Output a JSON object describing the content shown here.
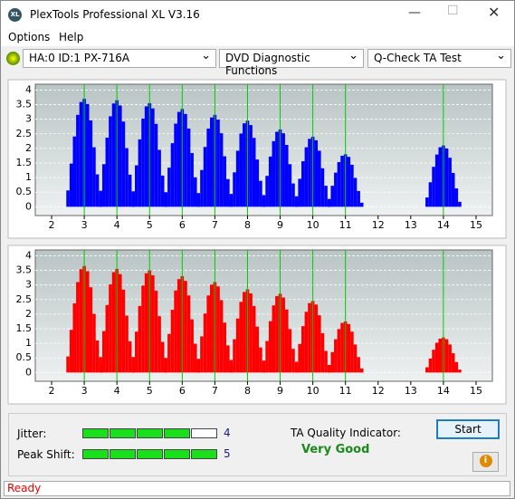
{
  "window": {
    "title": "PlexTools Professional XL V3.16",
    "icon": "XL"
  },
  "menu": [
    "Options",
    "Help"
  ],
  "toolbar": {
    "drive": "HA:0 ID:1  PX-716A",
    "function": "DVD Diagnostic Functions",
    "test": "Q-Check TA Test"
  },
  "chart_data": [
    {
      "type": "bar",
      "color": "#0000ff",
      "marker_color": "#00cc00",
      "grid": true,
      "xlim": [
        1.5,
        15.5
      ],
      "ylim": [
        -0.3,
        4.2
      ],
      "xticks": [
        2,
        3,
        4,
        5,
        6,
        7,
        8,
        9,
        10,
        11,
        12,
        13,
        14,
        15
      ],
      "yticks": [
        0,
        0.5,
        1,
        1.5,
        2,
        2.5,
        3,
        3.5,
        4
      ],
      "markers": [
        3,
        4,
        5,
        6,
        7,
        8,
        9,
        10,
        11,
        14
      ],
      "x": [
        2.5,
        2.6,
        2.7,
        2.8,
        2.9,
        3,
        3.1,
        3.2,
        3.3,
        3.4,
        3.5,
        3.5,
        3.6,
        3.7,
        3.8,
        3.9,
        4,
        4.1,
        4.2,
        4.3,
        4.4,
        4.5,
        4.5,
        4.6,
        4.7,
        4.8,
        4.9,
        5,
        5.1,
        5.2,
        5.3,
        5.4,
        5.5,
        5.5,
        5.6,
        5.7,
        5.8,
        5.9,
        6,
        6.1,
        6.2,
        6.3,
        6.4,
        6.5,
        6.5,
        6.6,
        6.7,
        6.8,
        6.9,
        7,
        7.1,
        7.2,
        7.3,
        7.4,
        7.5,
        7.5,
        7.6,
        7.7,
        7.8,
        7.9,
        8,
        8.1,
        8.2,
        8.3,
        8.4,
        8.5,
        8.5,
        8.6,
        8.7,
        8.8,
        8.9,
        9,
        9.1,
        9.2,
        9.3,
        9.4,
        9.5,
        9.5,
        9.6,
        9.7,
        9.8,
        9.9,
        10,
        10.1,
        10.2,
        10.3,
        10.4,
        10.5,
        10.5,
        10.6,
        10.7,
        10.8,
        10.9,
        11,
        11.1,
        11.2,
        11.3,
        11.4,
        11.5,
        13.5,
        13.6,
        13.7,
        13.8,
        13.9,
        14,
        14.1,
        14.2,
        14.3,
        14.4,
        14.5
      ],
      "values": [
        0.56,
        1.48,
        2.41,
        3.15,
        3.59,
        3.7,
        3.52,
        2.96,
        2.04,
        1.11,
        0.3,
        0.55,
        1.46,
        2.37,
        3.1,
        3.54,
        3.65,
        3.47,
        2.92,
        2.01,
        1.1,
        0.29,
        0.53,
        1.42,
        2.31,
        3.02,
        3.44,
        3.55,
        3.37,
        2.84,
        1.95,
        1.07,
        0.28,
        0.5,
        1.34,
        2.18,
        2.85,
        3.25,
        3.35,
        3.18,
        2.68,
        1.84,
        1.01,
        0.27,
        0.47,
        1.26,
        2.05,
        2.68,
        3.06,
        3.15,
        2.99,
        2.52,
        1.73,
        0.95,
        0.25,
        0.44,
        1.18,
        1.92,
        2.51,
        2.86,
        2.95,
        2.8,
        2.36,
        1.62,
        0.89,
        0.24,
        0.4,
        1.06,
        1.72,
        2.25,
        2.57,
        2.65,
        2.52,
        2.12,
        1.46,
        0.8,
        0.21,
        0.36,
        0.96,
        1.56,
        2.04,
        2.33,
        2.4,
        2.28,
        1.92,
        1.32,
        0.72,
        0.19,
        0.27,
        0.72,
        1.17,
        1.53,
        1.75,
        1.8,
        1.71,
        1.44,
        0.99,
        0.54,
        0.14,
        0.32,
        0.84,
        1.37,
        1.79,
        2.04,
        2.1,
        2.0,
        1.68,
        1.16,
        0.63,
        0.17
      ]
    },
    {
      "type": "bar",
      "color": "#ff0000",
      "marker_color": "#00cc00",
      "grid": true,
      "xlim": [
        1.5,
        15.5
      ],
      "ylim": [
        -0.3,
        4.2
      ],
      "xticks": [
        2,
        3,
        4,
        5,
        6,
        7,
        8,
        9,
        10,
        11,
        12,
        13,
        14,
        15
      ],
      "yticks": [
        0,
        0.5,
        1,
        1.5,
        2,
        2.5,
        3,
        3.5,
        4
      ],
      "markers": [
        3,
        4,
        5,
        6,
        7,
        8,
        9,
        10,
        11,
        14
      ],
      "x": [
        2.5,
        2.6,
        2.7,
        2.8,
        2.9,
        3,
        3.1,
        3.2,
        3.3,
        3.4,
        3.5,
        3.5,
        3.6,
        3.7,
        3.8,
        3.9,
        4,
        4.1,
        4.2,
        4.3,
        4.4,
        4.5,
        4.5,
        4.6,
        4.7,
        4.8,
        4.9,
        5,
        5.1,
        5.2,
        5.3,
        5.4,
        5.5,
        5.5,
        5.6,
        5.7,
        5.8,
        5.9,
        6,
        6.1,
        6.2,
        6.3,
        6.4,
        6.5,
        6.5,
        6.6,
        6.7,
        6.8,
        6.9,
        7,
        7.1,
        7.2,
        7.3,
        7.4,
        7.5,
        7.5,
        7.6,
        7.7,
        7.8,
        7.9,
        8,
        8.1,
        8.2,
        8.3,
        8.4,
        8.5,
        8.5,
        8.6,
        8.7,
        8.8,
        8.9,
        9,
        9.1,
        9.2,
        9.3,
        9.4,
        9.5,
        9.5,
        9.6,
        9.7,
        9.8,
        9.9,
        10,
        10.1,
        10.2,
        10.3,
        10.4,
        10.5,
        10.5,
        10.6,
        10.7,
        10.8,
        10.9,
        11,
        11.1,
        11.2,
        11.3,
        11.4,
        11.5,
        13.5,
        13.6,
        13.7,
        13.8,
        13.9,
        14,
        14.1,
        14.2,
        14.3,
        14.4,
        14.5
      ],
      "values": [
        0.55,
        1.46,
        2.37,
        3.1,
        3.54,
        3.65,
        3.47,
        2.92,
        2.01,
        1.1,
        0.29,
        0.53,
        1.42,
        2.31,
        3.02,
        3.44,
        3.55,
        3.37,
        2.84,
        1.95,
        1.07,
        0.28,
        0.53,
        1.4,
        2.28,
        2.98,
        3.4,
        3.5,
        3.33,
        2.8,
        1.93,
        1.05,
        0.28,
        0.5,
        1.32,
        2.15,
        2.81,
        3.2,
        3.3,
        3.14,
        2.64,
        1.82,
        0.99,
        0.26,
        0.47,
        1.24,
        2.02,
        2.64,
        3.01,
        3.1,
        2.95,
        2.48,
        1.71,
        0.93,
        0.25,
        0.43,
        1.14,
        1.85,
        2.42,
        2.76,
        2.85,
        2.71,
        2.28,
        1.57,
        0.86,
        0.23,
        0.41,
        1.08,
        1.76,
        2.3,
        2.62,
        2.7,
        2.57,
        2.16,
        1.49,
        0.81,
        0.22,
        0.37,
        0.98,
        1.59,
        2.08,
        2.38,
        2.45,
        2.33,
        1.96,
        1.35,
        0.74,
        0.2,
        0.26,
        0.7,
        1.14,
        1.49,
        1.7,
        1.75,
        1.66,
        1.4,
        0.96,
        0.53,
        0.14,
        0.18,
        0.48,
        0.78,
        1.02,
        1.16,
        1.2,
        1.14,
        0.96,
        0.66,
        0.36,
        0.1
      ]
    }
  ],
  "results": {
    "jitter": {
      "label": "Jitter:",
      "value": 4,
      "scale": 5
    },
    "peak_shift": {
      "label": "Peak Shift:",
      "value": 5,
      "scale": 5
    },
    "ta_label": "TA Quality Indicator:",
    "ta_value": "Very Good",
    "start": "Start"
  },
  "status": "Ready"
}
